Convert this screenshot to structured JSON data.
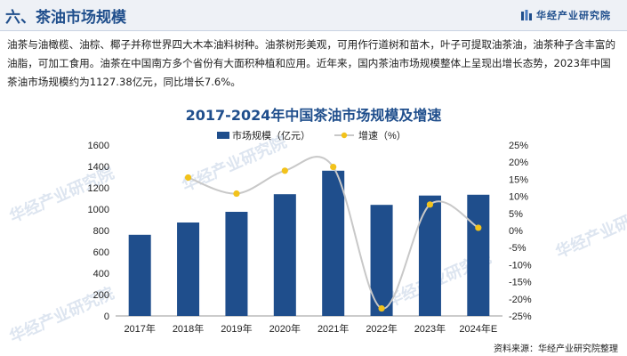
{
  "header": {
    "section_title": "六、茶油市场规模",
    "brand_name": "华经产业研究院"
  },
  "body_text": "油茶与油橄榄、油棕、椰子并称世界四大木本油料树种。油茶树形美观，可用作行道树和苗木，叶子可提取油茶油，油茶种子含丰富的油脂，可加工食用。油茶在中国南方多个省份有大面积种植和应用。近年来，国内茶油市场规模整体上呈现出增长态势，2023年中国茶油市场规模约为1127.38亿元，同比增长7.6%。",
  "watermark_text": "华经产业研究院",
  "chart_data": {
    "type": "bar+line",
    "title": "2017-2024年中国茶油市场规模及增速",
    "categories": [
      "2017年",
      "2018年",
      "2019年",
      "2020年",
      "2021年",
      "2022年",
      "2023年",
      "2024年E"
    ],
    "series": [
      {
        "name": "市场规模（亿元）",
        "type": "bar",
        "axis": "left",
        "color": "#1f4e8c",
        "values": [
          760,
          875,
          975,
          1140,
          1360,
          1040,
          1127.38,
          1135
        ]
      },
      {
        "name": "增速（%）",
        "type": "line",
        "axis": "right",
        "color": "#f2c21b",
        "line_color": "#c8c8c8",
        "values": [
          null,
          15.5,
          10.8,
          17.5,
          18.6,
          -22.8,
          7.6,
          0.8
        ]
      }
    ],
    "y_left": {
      "min": 0,
      "max": 1600,
      "ticks": [
        0,
        200,
        400,
        600,
        800,
        1000,
        1200,
        1400,
        1600
      ]
    },
    "y_right": {
      "min": -25,
      "max": 25,
      "ticks": [
        "25%",
        "20%",
        "15%",
        "10%",
        "5%",
        "0%",
        "-5%",
        "-10%",
        "-15%",
        "-20%",
        "-25%"
      ]
    },
    "legend_position": "top-center",
    "grid": false
  },
  "source_text": "资料来源：华经产业研究院整理"
}
